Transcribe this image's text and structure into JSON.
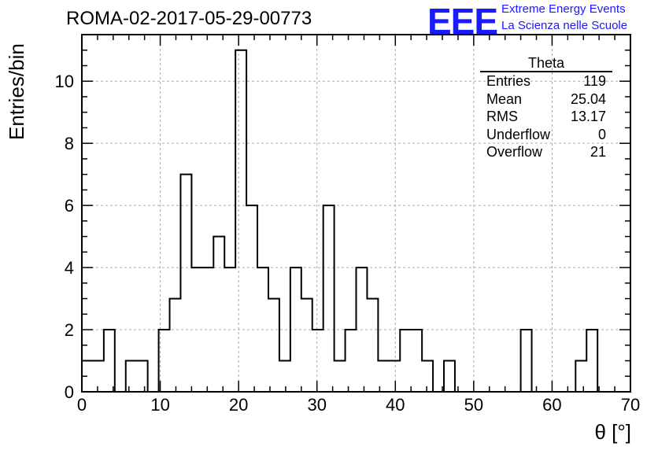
{
  "header": {
    "run_title": "ROMA-02-2017-05-29-00773",
    "logo_text": "EEE",
    "logo_line1": "Extreme Energy Events",
    "logo_line2": "La Scienza nelle Scuole",
    "logo_color": "#1a1aff"
  },
  "stats_box": {
    "title": "Theta",
    "rows": [
      {
        "label": "Entries",
        "value": "119"
      },
      {
        "label": "Mean",
        "value": "25.04"
      },
      {
        "label": "RMS",
        "value": "13.17"
      },
      {
        "label": "Underflow",
        "value": "0"
      },
      {
        "label": "Overflow",
        "value": "21"
      }
    ]
  },
  "chart_data": {
    "type": "histogram",
    "title": "ROMA-02-2017-05-29-00773",
    "xlabel": "θ [°]",
    "ylabel": "Entries/bin",
    "xlim": [
      0,
      70
    ],
    "ylim": [
      0,
      11.5
    ],
    "bin_width": 1.4,
    "bin_edges_start": 0,
    "values": [
      1,
      1,
      2,
      0,
      1,
      1,
      0,
      2,
      3,
      7,
      4,
      4,
      5,
      4,
      11,
      6,
      4,
      3,
      1,
      4,
      3,
      2,
      6,
      1,
      2,
      4,
      3,
      1,
      1,
      2,
      2,
      1,
      0,
      1,
      0,
      0,
      0,
      0,
      0,
      0,
      2,
      0,
      0,
      0,
      0,
      1,
      2,
      0
    ],
    "x_ticks": [
      0,
      10,
      20,
      30,
      40,
      50,
      60,
      70
    ],
    "y_ticks": [
      0,
      2,
      4,
      6,
      8,
      10
    ],
    "grid": true,
    "legend": "top-right stats box"
  }
}
